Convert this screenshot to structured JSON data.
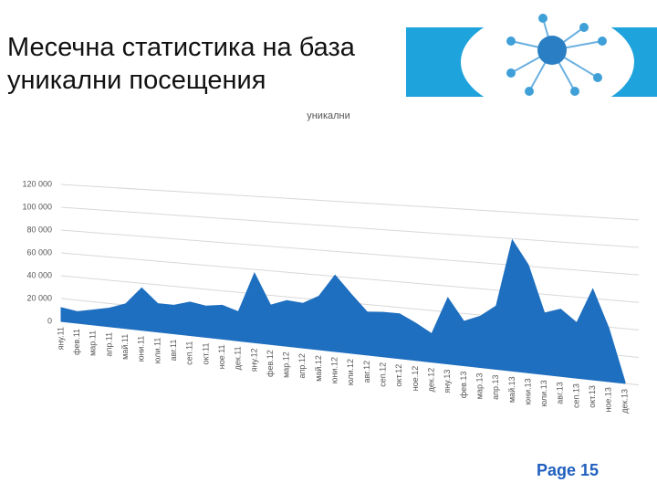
{
  "chart_data": {
    "type": "area",
    "title": "Месечна статистика на база уникални посещения",
    "series": [
      {
        "name": "уникални",
        "color": "#1f6fc0",
        "values": [
          12000,
          10000,
          13000,
          16000,
          21000,
          36000,
          24000,
          24000,
          28000,
          26000,
          28000,
          24000,
          57000,
          32000,
          37000,
          36000,
          43000,
          61000,
          47000,
          34000,
          35000,
          35000,
          29000,
          22000,
          51000,
          34000,
          39000,
          48000,
          99000,
          81000,
          46000,
          50000,
          41000,
          67000,
          39000,
          1000
        ]
      }
    ],
    "categories": [
      "яну.11",
      "фев.11",
      "мар.11",
      "апр.11",
      "май.11",
      "юни.11",
      "юли.11",
      "авг.11",
      "сеп.11",
      "окт.11",
      "ное.11",
      "дек.11",
      "яну.12",
      "фев.12",
      "мар.12",
      "апр.12",
      "май.12",
      "юни.12",
      "юли.12",
      "авг.12",
      "сеп.12",
      "окт.12",
      "ное.12",
      "дек.12",
      "яну.13",
      "фев.13",
      "мар.13",
      "апр.13",
      "май.13",
      "юни.13",
      "юли.13",
      "авг.13",
      "сеп.13",
      "окт.13",
      "ное.13",
      "дек.13"
    ],
    "ylim": [
      0,
      120000
    ],
    "yticks": [
      0,
      {
        "value": 20000,
        "label": "20 000"
      },
      {
        "value": 40000,
        "label": "40 000"
      },
      {
        "value": 60000,
        "label": "60 000"
      },
      {
        "value": 80000,
        "label": "80 000"
      },
      {
        "value": 100000,
        "label": "100 000"
      },
      {
        "value": 120000,
        "label": "120 000"
      }
    ],
    "grid": true
  },
  "footer": {
    "page": "Page 15"
  }
}
